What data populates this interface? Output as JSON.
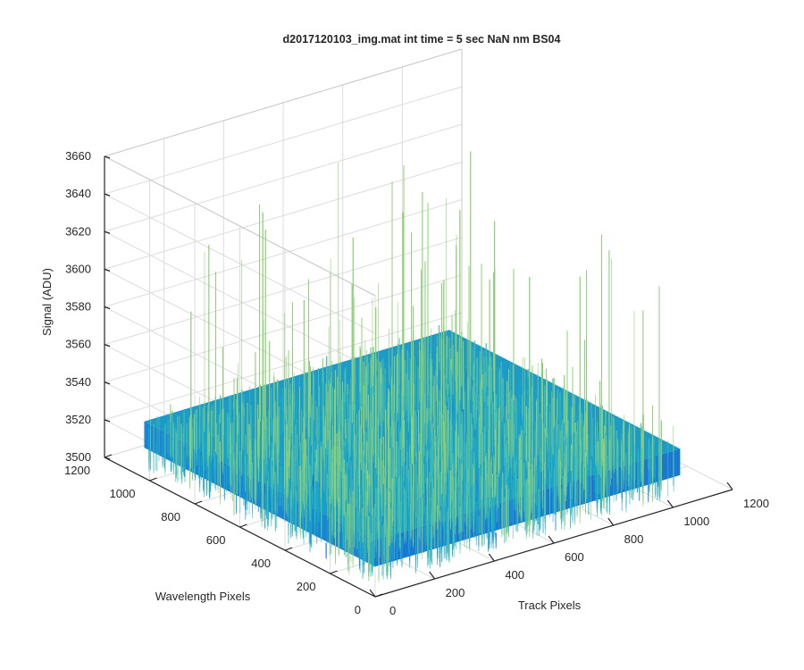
{
  "chart_data": {
    "type": "surface",
    "title": "d2017120103_img.mat int time = 5 sec  NaN nm BS04",
    "xlabel": "Track Pixels",
    "ylabel": "Wavelength Pixels",
    "zlabel": "Signal (ADU)",
    "xlim": [
      0,
      1200
    ],
    "ylim": [
      0,
      1200
    ],
    "zlim": [
      3500,
      3660
    ],
    "x_ticks": [
      "0",
      "200",
      "400",
      "600",
      "800",
      "1000",
      "1200"
    ],
    "y_ticks": [
      "0",
      "200",
      "400",
      "600",
      "800",
      "1000",
      "1200"
    ],
    "z_ticks": [
      "3500",
      "3520",
      "3540",
      "3560",
      "3580",
      "3600",
      "3620",
      "3640",
      "3660"
    ],
    "data_extent": {
      "x": [
        0,
        1024
      ],
      "y": [
        0,
        1024
      ]
    },
    "signal_level": 3530,
    "signal_noise_range": [
      3500,
      3650
    ],
    "grid": true,
    "colormap": [
      "#0a5fd8",
      "#1a8ad6",
      "#1aa8c8",
      "#4dbfae",
      "#8fcf7a"
    ]
  }
}
